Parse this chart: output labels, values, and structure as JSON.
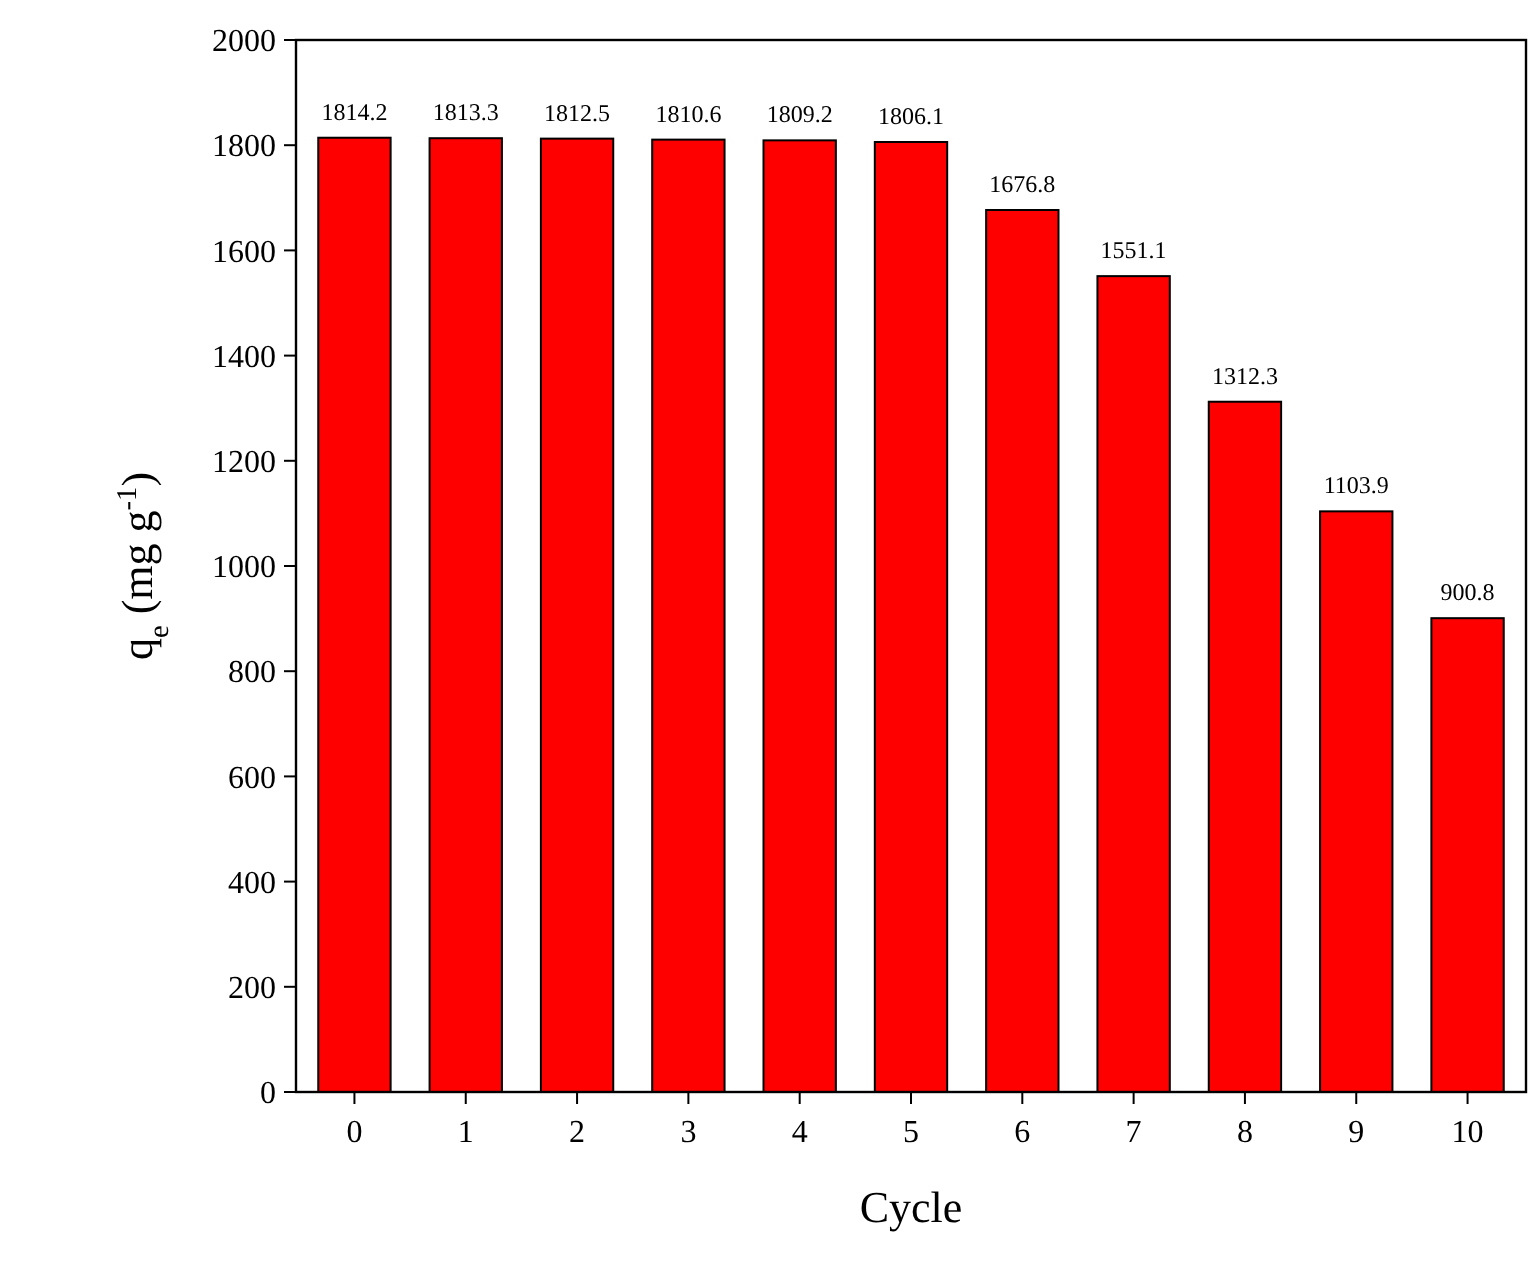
{
  "chart_data": {
    "type": "bar",
    "xlabel": "Cycle",
    "ylabel": "q$_{e}$ (mg g$^{-1}$)",
    "categories": [
      "0",
      "1",
      "2",
      "3",
      "4",
      "5",
      "6",
      "7",
      "8",
      "9",
      "10"
    ],
    "values": [
      1814.2,
      1813.3,
      1812.5,
      1810.6,
      1809.2,
      1806.1,
      1676.8,
      1551.1,
      1312.3,
      1103.9,
      900.8
    ],
    "color": "#ff0000",
    "ylim": [
      0,
      2000
    ],
    "yticks": [
      0,
      200,
      400,
      600,
      800,
      1000,
      1200,
      1400,
      1600,
      1800,
      2000
    ],
    "grid": false,
    "data_labels": true
  }
}
